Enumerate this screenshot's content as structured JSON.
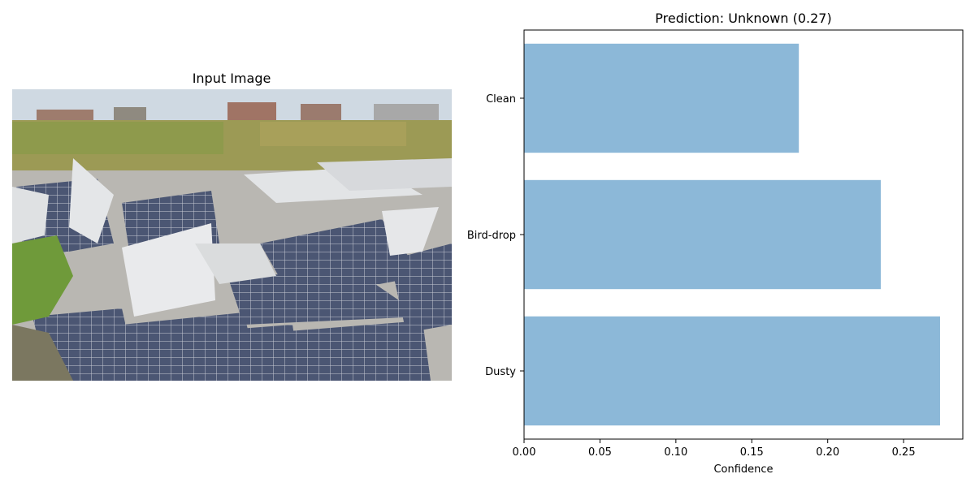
{
  "left_panel": {
    "title": "Input Image",
    "image_subject": "pile of broken solar panels in an overgrown field"
  },
  "colors": {
    "bar": "#8cb8d8",
    "sky": "#cfd9e2",
    "grass": "#9c9a55",
    "panel_dark": "#4b5673",
    "panel_white": "#e4e6e8"
  },
  "chart_data": {
    "type": "bar",
    "orientation": "horizontal",
    "title": "Prediction: Unknown (0.27)",
    "xlabel": "Confidence",
    "ylabel": "",
    "categories": [
      "Dusty",
      "Bird-drop",
      "Clean"
    ],
    "values": [
      0.274,
      0.235,
      0.181
    ],
    "xlim": [
      0,
      0.289
    ],
    "xticks": [
      0.0,
      0.05,
      0.1,
      0.15,
      0.2,
      0.25
    ],
    "xtick_labels": [
      "0.00",
      "0.05",
      "0.10",
      "0.15",
      "0.20",
      "0.25"
    ],
    "grid": false
  }
}
